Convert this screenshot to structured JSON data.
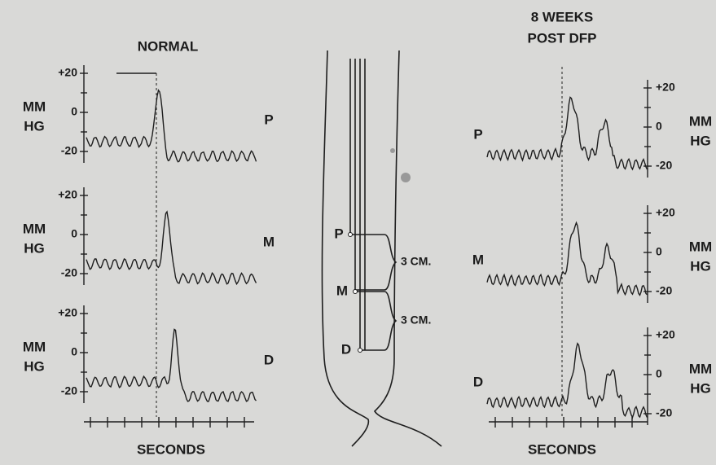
{
  "normal_panel": {
    "title": "NORMAL",
    "axis_label": "SECONDS",
    "traces": [
      {
        "label": "P",
        "unit": [
          "MM",
          "HG"
        ],
        "ticks": [
          "+20",
          "0",
          "-20"
        ]
      },
      {
        "label": "M",
        "unit": [
          "MM",
          "HG"
        ],
        "ticks": [
          "+20",
          "0",
          "-20"
        ]
      },
      {
        "label": "D",
        "unit": [
          "MM",
          "HG"
        ],
        "ticks": [
          "+20",
          "0",
          "-20"
        ]
      }
    ]
  },
  "post_dfp_panel": {
    "title": [
      "8 WEEKS",
      "POST DFP"
    ],
    "axis_label": "SECONDS",
    "traces": [
      {
        "label": "P",
        "unit": [
          "MM",
          "HG"
        ],
        "ticks": [
          "+20",
          "0",
          "-20"
        ]
      },
      {
        "label": "M",
        "unit": [
          "MM",
          "HG"
        ],
        "ticks": [
          "+20",
          "0",
          "-20"
        ]
      },
      {
        "label": "D",
        "unit": [
          "MM",
          "HG"
        ],
        "ticks": [
          "+20",
          "0",
          "-20"
        ]
      }
    ]
  },
  "diagram": {
    "points": [
      "P",
      "M",
      "D"
    ],
    "spacings": [
      "3 CM.",
      "3 CM."
    ]
  }
}
